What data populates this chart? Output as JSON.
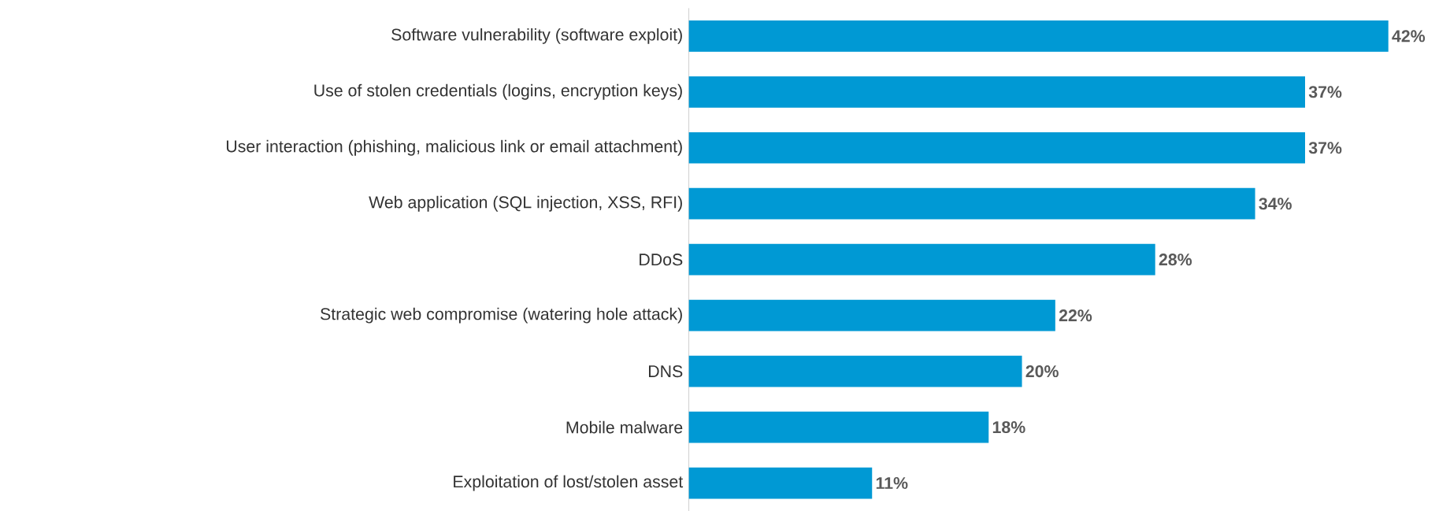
{
  "chart_data": {
    "type": "bar",
    "orientation": "horizontal",
    "categories": [
      "Software vulnerability (software exploit)",
      "Use of stolen credentials (logins, encryption keys)",
      "User interaction (phishing, malicious link or email attachment)",
      "Web application (SQL injection, XSS, RFI)",
      "DDoS",
      "Strategic web compromise (watering hole attack)",
      "DNS",
      "Mobile malware",
      "Exploitation of lost/stolen asset"
    ],
    "values": [
      42,
      37,
      37,
      34,
      28,
      22,
      20,
      18,
      11
    ],
    "value_labels": [
      "42%",
      "37%",
      "37%",
      "34%",
      "28%",
      "22%",
      "20%",
      "18%",
      "11%"
    ],
    "color": "#0099d4"
  }
}
